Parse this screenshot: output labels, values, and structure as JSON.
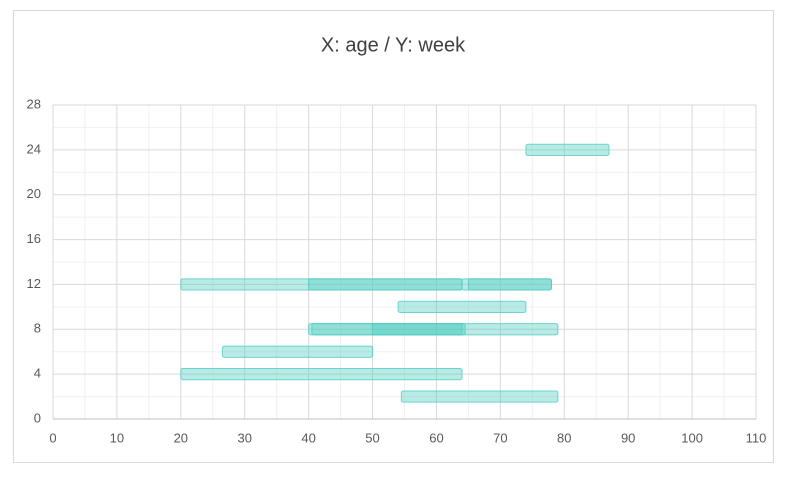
{
  "chart_data": {
    "type": "floating-bar",
    "title": "X: age / Y: week",
    "bars": [
      {
        "y": 24,
        "start": 74,
        "end": 87
      },
      {
        "y": 12,
        "start": 20,
        "end": 64
      },
      {
        "y": 12,
        "start": 40,
        "end": 64
      },
      {
        "y": 12,
        "start": 64,
        "end": 78
      },
      {
        "y": 12,
        "start": 65,
        "end": 78
      },
      {
        "y": 10,
        "start": 54,
        "end": 74
      },
      {
        "y": 8,
        "start": 40,
        "end": 64.5
      },
      {
        "y": 8,
        "start": 40.5,
        "end": 64
      },
      {
        "y": 8,
        "start": 50,
        "end": 79
      },
      {
        "y": 6,
        "start": 26.5,
        "end": 50
      },
      {
        "y": 4,
        "start": 20,
        "end": 64
      },
      {
        "y": 2,
        "start": 54.5,
        "end": 79
      }
    ],
    "color": "#4fcdc0",
    "xlim": [
      0,
      110
    ],
    "xticks": [
      0,
      10,
      20,
      30,
      40,
      50,
      60,
      70,
      80,
      90,
      100,
      110
    ],
    "ylim": [
      0,
      28
    ],
    "yticks": [
      0,
      4,
      8,
      12,
      16,
      20,
      24,
      28
    ],
    "grid": true,
    "minor_grid": true
  }
}
